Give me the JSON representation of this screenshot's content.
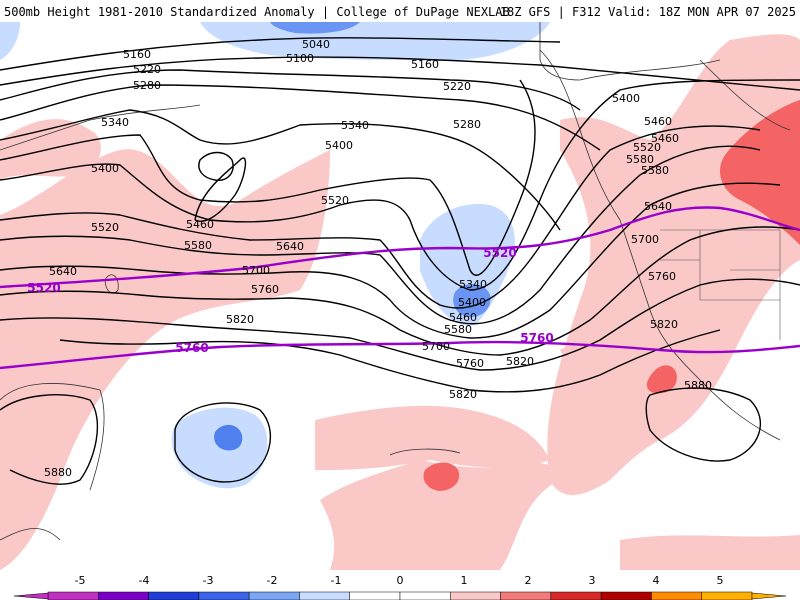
{
  "header": {
    "title": "500mb Height 1981-2010 Standardized Anomaly | College of DuPage NEXLAB",
    "run_info": "18Z GFS | F312 Valid: 18Z MON APR 07 2025"
  },
  "map": {
    "black_contour_labels": [
      "5040",
      "5100",
      "5160",
      "5160",
      "5220",
      "5220",
      "5280",
      "5280",
      "5340",
      "5340",
      "5400",
      "5400",
      "5400",
      "5460",
      "5460",
      "5520",
      "5520",
      "5580",
      "5580",
      "5640",
      "5640",
      "5700",
      "5700",
      "5760",
      "5760",
      "5820",
      "5820",
      "5820",
      "5880",
      "5880",
      "5340",
      "5400",
      "5460",
      "5580",
      "5460",
      "5520",
      "5580",
      "5640",
      "5700",
      "5760",
      "5820"
    ],
    "purple_contour_labels": [
      "5520",
      "5520",
      "5760",
      "5760"
    ],
    "colors": {
      "purple_contour": "#9900cc",
      "pos1": "#fbc8c8",
      "pos2": "#f46464",
      "neg1": "#c8dcff",
      "neg2": "#6b95f2",
      "neg3": "#3b64e8"
    }
  },
  "colorbar": {
    "tick_labels": [
      "-5",
      "-4",
      "-3",
      "-2",
      "-1",
      "0",
      "1",
      "2",
      "3",
      "4",
      "5"
    ],
    "bins": [
      "#c030c0",
      "#7a00c8",
      "#1f3fd8",
      "#3b64e8",
      "#7aa6f4",
      "#c8dcff",
      "#ffffff",
      "#ffffff",
      "#fbc8c8",
      "#f47a7a",
      "#d82828",
      "#b00000",
      "#ff8c00",
      "#ffb000"
    ]
  }
}
